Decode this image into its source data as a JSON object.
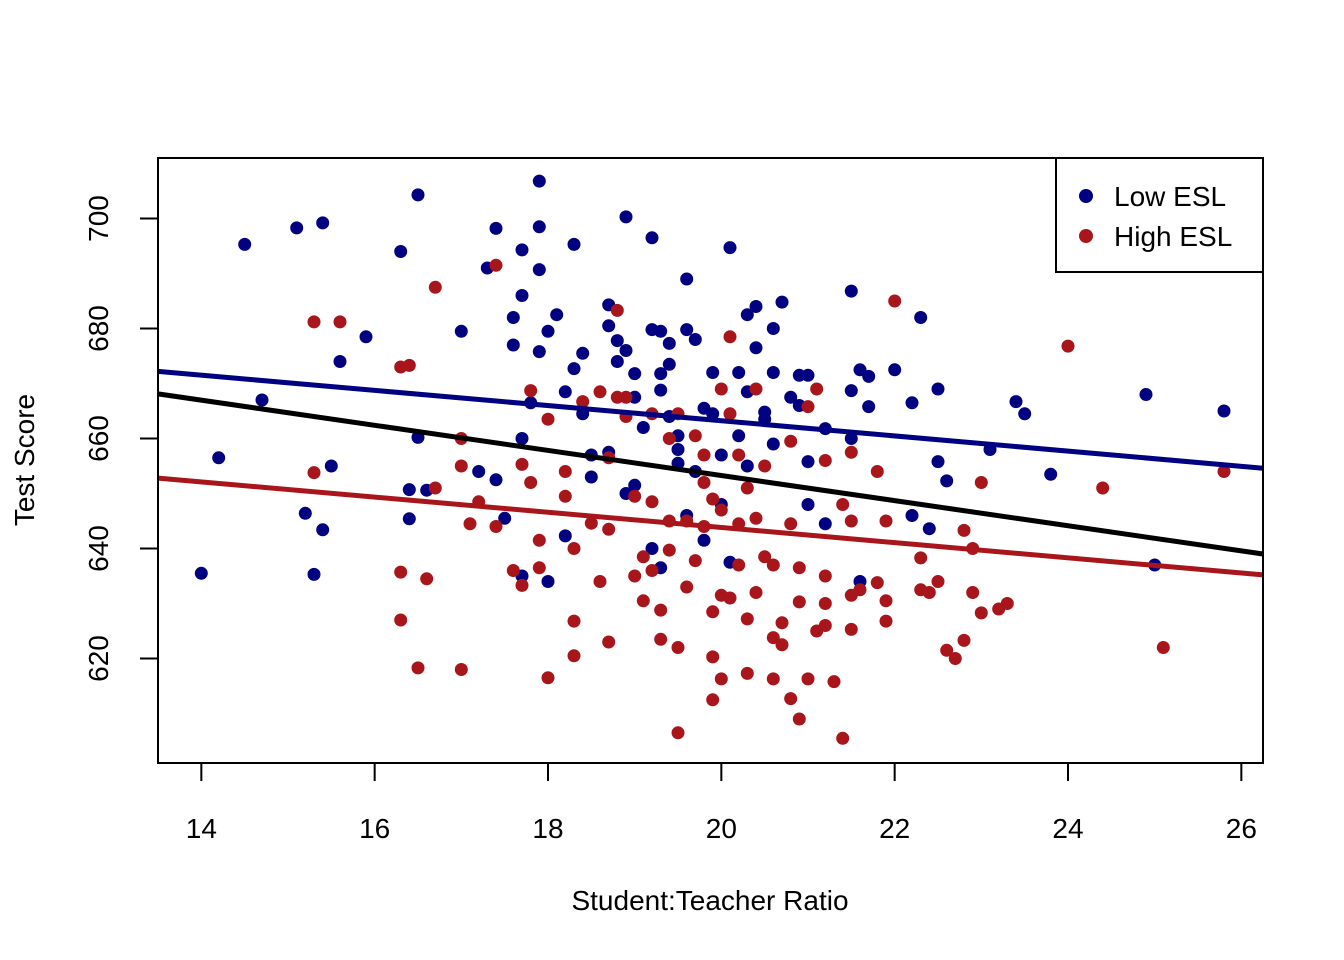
{
  "chart_data": {
    "type": "scatter",
    "title": "",
    "xlabel": "Student:Teacher Ratio",
    "ylabel": "Test Score",
    "xlim": [
      13.5,
      26.25
    ],
    "ylim": [
      601,
      711
    ],
    "x_ticks": [
      14,
      16,
      18,
      20,
      22,
      24,
      26
    ],
    "y_ticks": [
      620,
      640,
      660,
      680,
      700
    ],
    "grid": false,
    "legend_position": "top-right",
    "series": [
      {
        "name": "Low ESL",
        "color": "#000080",
        "points": [
          [
            14.0,
            635.5
          ],
          [
            14.2,
            656.5
          ],
          [
            14.5,
            695.3
          ],
          [
            14.7,
            667.0
          ],
          [
            15.1,
            698.3
          ],
          [
            15.2,
            646.4
          ],
          [
            15.3,
            635.3
          ],
          [
            15.4,
            699.2
          ],
          [
            15.4,
            643.4
          ],
          [
            15.5,
            655.0
          ],
          [
            15.6,
            674.0
          ],
          [
            15.9,
            678.5
          ],
          [
            16.3,
            694.0
          ],
          [
            16.4,
            650.7
          ],
          [
            16.4,
            645.4
          ],
          [
            16.5,
            704.3
          ],
          [
            16.5,
            660.2
          ],
          [
            16.6,
            650.6
          ],
          [
            17.0,
            679.5
          ],
          [
            17.2,
            654.0
          ],
          [
            17.3,
            691.0
          ],
          [
            17.4,
            698.2
          ],
          [
            17.4,
            652.5
          ],
          [
            17.6,
            682.0
          ],
          [
            17.6,
            677.0
          ],
          [
            17.7,
            686.0
          ],
          [
            17.7,
            694.3
          ],
          [
            17.7,
            660.0
          ],
          [
            17.8,
            666.5
          ],
          [
            17.9,
            698.5
          ],
          [
            17.9,
            690.7
          ],
          [
            17.9,
            675.8
          ],
          [
            17.9,
            706.8
          ],
          [
            18.0,
            679.5
          ],
          [
            18.1,
            682.5
          ],
          [
            18.2,
            668.5
          ],
          [
            18.3,
            695.3
          ],
          [
            18.3,
            672.7
          ],
          [
            18.4,
            675.5
          ],
          [
            18.4,
            664.5
          ],
          [
            18.5,
            657.0
          ],
          [
            18.7,
            680.5
          ],
          [
            18.7,
            684.3
          ],
          [
            18.8,
            674.0
          ],
          [
            18.8,
            677.8
          ],
          [
            18.9,
            700.3
          ],
          [
            18.9,
            676.0
          ],
          [
            19.0,
            671.8
          ],
          [
            19.0,
            667.5
          ],
          [
            19.1,
            662.0
          ],
          [
            19.2,
            696.5
          ],
          [
            19.2,
            679.8
          ],
          [
            19.3,
            679.5
          ],
          [
            19.3,
            671.8
          ],
          [
            19.3,
            668.8
          ],
          [
            19.4,
            677.3
          ],
          [
            19.4,
            664.0
          ],
          [
            19.4,
            673.5
          ],
          [
            19.5,
            660.5
          ],
          [
            19.5,
            655.5
          ],
          [
            19.6,
            689.0
          ],
          [
            19.6,
            679.8
          ],
          [
            19.7,
            678.0
          ],
          [
            19.8,
            665.5
          ],
          [
            19.9,
            672.0
          ],
          [
            19.9,
            664.5
          ],
          [
            20.0,
            657.0
          ],
          [
            20.0,
            648.0
          ],
          [
            20.1,
            694.7
          ],
          [
            20.2,
            672.0
          ],
          [
            20.3,
            682.5
          ],
          [
            20.3,
            668.5
          ],
          [
            20.4,
            676.5
          ],
          [
            20.4,
            684.0
          ],
          [
            20.5,
            664.8
          ],
          [
            20.6,
            680.0
          ],
          [
            20.6,
            672.0
          ],
          [
            20.7,
            684.8
          ],
          [
            20.8,
            667.5
          ],
          [
            20.9,
            671.5
          ],
          [
            20.9,
            666.0
          ],
          [
            21.0,
            671.5
          ],
          [
            21.0,
            648.0
          ],
          [
            21.2,
            661.8
          ],
          [
            21.2,
            644.5
          ],
          [
            21.5,
            686.8
          ],
          [
            21.5,
            668.7
          ],
          [
            21.5,
            660.0
          ],
          [
            21.6,
            634.0
          ],
          [
            21.6,
            672.5
          ],
          [
            21.7,
            665.8
          ],
          [
            21.7,
            671.3
          ],
          [
            22.0,
            672.5
          ],
          [
            22.2,
            666.5
          ],
          [
            22.2,
            646.0
          ],
          [
            22.3,
            682.0
          ],
          [
            22.4,
            643.6
          ],
          [
            22.5,
            655.8
          ],
          [
            22.5,
            669.0
          ],
          [
            22.6,
            652.3
          ],
          [
            23.1,
            658.0
          ],
          [
            23.4,
            666.7
          ],
          [
            23.5,
            664.5
          ],
          [
            23.8,
            653.5
          ],
          [
            24.9,
            668.0
          ],
          [
            25.0,
            637.0
          ],
          [
            25.8,
            665.0
          ],
          [
            17.7,
            635.0
          ],
          [
            17.5,
            645.5
          ],
          [
            18.0,
            634.0
          ],
          [
            18.2,
            642.3
          ],
          [
            19.2,
            640.0
          ],
          [
            19.6,
            646.0
          ],
          [
            20.1,
            637.5
          ],
          [
            20.6,
            659.0
          ],
          [
            21.0,
            655.8
          ],
          [
            18.9,
            650.0
          ],
          [
            19.0,
            651.5
          ],
          [
            19.5,
            658.0
          ],
          [
            20.3,
            655.0
          ],
          [
            18.5,
            653.0
          ],
          [
            19.8,
            641.5
          ],
          [
            19.3,
            636.5
          ],
          [
            18.7,
            657.5
          ],
          [
            19.7,
            654.0
          ],
          [
            20.5,
            663.5
          ],
          [
            20.2,
            660.5
          ]
        ]
      },
      {
        "name": "High ESL",
        "color": "#A8151B",
        "points": [
          [
            15.3,
            653.8
          ],
          [
            15.3,
            681.2
          ],
          [
            15.6,
            681.2
          ],
          [
            16.3,
            673.0
          ],
          [
            16.3,
            635.7
          ],
          [
            16.4,
            673.3
          ],
          [
            16.3,
            627.0
          ],
          [
            16.5,
            618.3
          ],
          [
            16.6,
            634.5
          ],
          [
            16.7,
            687.5
          ],
          [
            16.7,
            651.0
          ],
          [
            17.0,
            618.0
          ],
          [
            17.0,
            660.0
          ],
          [
            17.0,
            655.0
          ],
          [
            17.1,
            644.5
          ],
          [
            17.2,
            648.5
          ],
          [
            17.4,
            691.5
          ],
          [
            17.4,
            644.0
          ],
          [
            17.6,
            636.0
          ],
          [
            17.7,
            633.3
          ],
          [
            17.7,
            655.3
          ],
          [
            17.8,
            668.7
          ],
          [
            17.8,
            652.0
          ],
          [
            17.9,
            641.5
          ],
          [
            17.9,
            636.5
          ],
          [
            18.0,
            663.5
          ],
          [
            18.0,
            616.5
          ],
          [
            18.2,
            654.0
          ],
          [
            18.2,
            649.5
          ],
          [
            18.3,
            640.0
          ],
          [
            18.3,
            626.8
          ],
          [
            18.3,
            620.5
          ],
          [
            18.4,
            666.7
          ],
          [
            18.5,
            644.6
          ],
          [
            18.6,
            668.5
          ],
          [
            18.6,
            634.0
          ],
          [
            18.7,
            656.5
          ],
          [
            18.7,
            643.5
          ],
          [
            18.7,
            623.0
          ],
          [
            18.8,
            683.3
          ],
          [
            18.9,
            667.5
          ],
          [
            18.9,
            664.0
          ],
          [
            19.0,
            649.5
          ],
          [
            19.0,
            635.0
          ],
          [
            19.1,
            638.5
          ],
          [
            19.1,
            630.5
          ],
          [
            19.2,
            636.0
          ],
          [
            19.2,
            664.5
          ],
          [
            19.3,
            623.5
          ],
          [
            19.3,
            628.8
          ],
          [
            19.4,
            660.0
          ],
          [
            19.4,
            645.0
          ],
          [
            19.4,
            639.7
          ],
          [
            19.5,
            622.0
          ],
          [
            19.5,
            606.5
          ],
          [
            19.6,
            645.0
          ],
          [
            19.6,
            633.0
          ],
          [
            19.7,
            637.8
          ],
          [
            19.8,
            657.0
          ],
          [
            19.8,
            652.0
          ],
          [
            19.8,
            644.0
          ],
          [
            19.9,
            628.5
          ],
          [
            19.9,
            620.3
          ],
          [
            19.9,
            612.5
          ],
          [
            20.0,
            631.5
          ],
          [
            20.0,
            616.3
          ],
          [
            20.0,
            647.0
          ],
          [
            20.1,
            678.5
          ],
          [
            20.1,
            631.0
          ],
          [
            20.1,
            664.5
          ],
          [
            20.2,
            637.0
          ],
          [
            20.2,
            644.5
          ],
          [
            20.3,
            617.3
          ],
          [
            20.3,
            627.2
          ],
          [
            20.4,
            669.0
          ],
          [
            20.4,
            632.0
          ],
          [
            20.5,
            655.0
          ],
          [
            20.5,
            638.5
          ],
          [
            20.6,
            623.8
          ],
          [
            20.6,
            616.3
          ],
          [
            20.7,
            626.5
          ],
          [
            20.7,
            622.5
          ],
          [
            20.8,
            644.5
          ],
          [
            20.8,
            612.7
          ],
          [
            20.9,
            636.5
          ],
          [
            20.9,
            609.0
          ],
          [
            20.9,
            630.3
          ],
          [
            21.0,
            616.3
          ],
          [
            21.0,
            665.8
          ],
          [
            21.1,
            625.0
          ],
          [
            21.1,
            669.0
          ],
          [
            21.2,
            635.0
          ],
          [
            21.2,
            630.0
          ],
          [
            21.2,
            626.0
          ],
          [
            21.3,
            615.8
          ],
          [
            21.4,
            648.0
          ],
          [
            21.4,
            605.5
          ],
          [
            21.5,
            657.5
          ],
          [
            21.5,
            645.0
          ],
          [
            21.5,
            631.5
          ],
          [
            21.5,
            625.3
          ],
          [
            21.6,
            632.5
          ],
          [
            21.8,
            654.0
          ],
          [
            21.8,
            633.8
          ],
          [
            21.9,
            645.0
          ],
          [
            21.9,
            630.5
          ],
          [
            21.9,
            626.8
          ],
          [
            22.0,
            685.0
          ],
          [
            22.3,
            632.5
          ],
          [
            22.3,
            638.3
          ],
          [
            22.4,
            632.0
          ],
          [
            22.5,
            634.0
          ],
          [
            22.6,
            621.5
          ],
          [
            22.7,
            620.0
          ],
          [
            22.8,
            643.3
          ],
          [
            22.8,
            623.3
          ],
          [
            22.9,
            632.0
          ],
          [
            22.9,
            640.0
          ],
          [
            23.0,
            652.0
          ],
          [
            23.0,
            628.3
          ],
          [
            23.2,
            629.0
          ],
          [
            23.3,
            630.0
          ],
          [
            24.0,
            676.8
          ],
          [
            24.4,
            651.0
          ],
          [
            25.1,
            622.0
          ],
          [
            25.8,
            654.0
          ],
          [
            19.7,
            660.5
          ],
          [
            20.0,
            669.0
          ],
          [
            20.3,
            651.0
          ],
          [
            19.5,
            664.5
          ],
          [
            18.8,
            667.5
          ],
          [
            20.6,
            637.0
          ],
          [
            21.2,
            656.0
          ],
          [
            19.9,
            649.0
          ],
          [
            20.2,
            657.0
          ],
          [
            20.8,
            659.5
          ],
          [
            19.2,
            648.5
          ],
          [
            20.4,
            645.5
          ]
        ]
      }
    ],
    "lines": [
      {
        "name": "",
        "color": "#000080",
        "x": [
          13.5,
          26.25
        ],
        "y": [
          672.2,
          654.6
        ]
      },
      {
        "name": "",
        "color": "#000000",
        "x": [
          13.5,
          26.25
        ],
        "y": [
          668.1,
          639.0
        ]
      },
      {
        "name": "",
        "color": "#A8151B",
        "x": [
          13.5,
          26.25
        ],
        "y": [
          652.8,
          635.2
        ]
      }
    ]
  }
}
